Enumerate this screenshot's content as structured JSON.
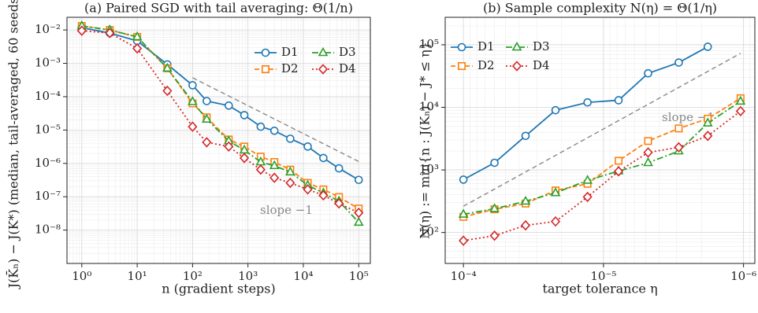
{
  "chart_data": [
    {
      "type": "line",
      "title": "(a) Paired SGD with tail averaging: Θ(1/n)",
      "xlabel": "n (gradient steps)",
      "ylabel": "J(K̄ₙ) − J(K*)  (median, tail-averaged, 60 seeds)",
      "xscale": "log",
      "yscale": "log",
      "grid": true,
      "minor_grid": true,
      "legend": "upper right",
      "xlim": [
        0.54,
        162000
      ],
      "ylim": [
        1e-09,
        0.024
      ],
      "xticks": [
        {
          "value": 1,
          "label": "10⁰"
        },
        {
          "value": 10,
          "label": "10¹"
        },
        {
          "value": 100,
          "label": "10²"
        },
        {
          "value": 1000,
          "label": "10³"
        },
        {
          "value": 10000,
          "label": "10⁴"
        },
        {
          "value": 100000,
          "label": "10⁵"
        }
      ],
      "yticks": [
        {
          "value": 0.01,
          "label": "10⁻²"
        },
        {
          "value": 0.001,
          "label": "10⁻³"
        },
        {
          "value": 0.0001,
          "label": "10⁻⁴"
        },
        {
          "value": 1e-05,
          "label": "10⁻⁵"
        },
        {
          "value": 1e-06,
          "label": "10⁻⁶"
        },
        {
          "value": 1e-07,
          "label": "10⁻⁷"
        },
        {
          "value": 1e-08,
          "label": "10⁻⁸"
        }
      ],
      "x": [
        1,
        3.2,
        10,
        35,
        100,
        180,
        450,
        860,
        1700,
        3000,
        5800,
        12000,
        23000,
        44000,
        100000
      ],
      "series": [
        {
          "name": "D1",
          "color": "#1f77b4",
          "marker": "circle",
          "linestyle": "solid",
          "values": [
            0.0117,
            0.0081,
            0.0047,
            0.00093,
            0.00022,
            7.4e-05,
            5.4e-05,
            2.8e-05,
            1.26e-05,
            9.5e-06,
            5.5e-06,
            3.2e-06,
            1.45e-06,
            7.1e-07,
            3.2e-07
          ]
        },
        {
          "name": "D2",
          "color": "#ff7f0e",
          "marker": "square",
          "linestyle": "dashed",
          "values": [
            0.0132,
            0.01,
            0.0062,
            0.00071,
            6.3e-05,
            2.4e-05,
            5.2e-06,
            3.2e-06,
            1.6e-06,
            1.1e-06,
            6.5e-07,
            2.6e-07,
            1.66e-07,
            9.8e-08,
            4.4e-08
          ]
        },
        {
          "name": "D3",
          "color": "#2ca02c",
          "marker": "triangle",
          "linestyle": "dashdot",
          "values": [
            0.0132,
            0.01,
            0.0062,
            0.00071,
            7.1e-05,
            2.1e-05,
            4.7e-06,
            2.5e-06,
            1.1e-06,
            8.5e-07,
            5.5e-07,
            2.2e-07,
            1.3e-07,
            7.4e-08,
            1.7e-08
          ]
        },
        {
          "name": "D4",
          "color": "#d62728",
          "marker": "diamond",
          "linestyle": "dotted",
          "values": [
            0.0095,
            0.0081,
            0.0028,
            0.00015,
            1.26e-05,
            4.3e-06,
            3.2e-06,
            1.45e-06,
            6.5e-07,
            3.7e-07,
            2.6e-07,
            1.66e-07,
            1.1e-07,
            6.3e-08,
            3.3e-08
          ]
        }
      ],
      "reference": {
        "color": "#888888",
        "x": [
          100,
          110000
        ],
        "values": [
          0.00037,
          1.05e-06
        ]
      },
      "annotation": "slope −1"
    },
    {
      "type": "line",
      "title": "(b) Sample complexity N(η) = Θ(1/η)",
      "xlabel": "target tolerance η",
      "ylabel": "N(η) := min{n : J(Kₙ) − J* ≤ η}",
      "xscale": "log",
      "yscale": "log",
      "grid": true,
      "minor_grid": true,
      "legend": "upper left",
      "xlim": [
        0.000135,
        8.3e-07
      ],
      "ylim": [
        32,
        275000
      ],
      "xticks": [
        {
          "value": 0.0001,
          "label": "10⁻⁴"
        },
        {
          "value": 1e-05,
          "label": "10⁻⁵"
        },
        {
          "value": 1e-06,
          "label": "10⁻⁶"
        }
      ],
      "yticks": [
        {
          "value": 100,
          "label": "10²"
        },
        {
          "value": 1000,
          "label": "10³"
        },
        {
          "value": 10000,
          "label": "10⁴"
        },
        {
          "value": 100000,
          "label": "10⁵"
        }
      ],
      "x": [
        0.0001,
        6e-05,
        3.6e-05,
        2.2e-05,
        1.3e-05,
        7.8e-06,
        4.8e-06,
        2.9e-06,
        1.8e-06,
        1.05e-06
      ],
      "series": [
        {
          "name": "D1",
          "color": "#1f77b4",
          "marker": "circle",
          "linestyle": "solid",
          "values": [
            700,
            1300,
            3500,
            9000,
            12000,
            13000,
            35000,
            52000,
            93000,
            null
          ]
        },
        {
          "name": "D2",
          "color": "#ff7f0e",
          "marker": "square",
          "linestyle": "dashed",
          "values": [
            178,
            235,
            290,
            470,
            600,
            1400,
            2900,
            4600,
            6600,
            14000
          ]
        },
        {
          "name": "D3",
          "color": "#2ca02c",
          "marker": "triangle",
          "linestyle": "dashdot",
          "values": [
            195,
            240,
            315,
            430,
            680,
            960,
            1300,
            2000,
            5600,
            12500
          ]
        },
        {
          "name": "D4",
          "color": "#d62728",
          "marker": "diamond",
          "linestyle": "dotted",
          "values": [
            74,
            89,
            130,
            150,
            370,
            950,
            1900,
            2300,
            3500,
            8700
          ]
        }
      ],
      "reference": {
        "color": "#888888",
        "x": [
          0.0001,
          1.05e-06
        ],
        "values": [
          263,
          73000
        ]
      },
      "annotation": "slope −1"
    }
  ]
}
